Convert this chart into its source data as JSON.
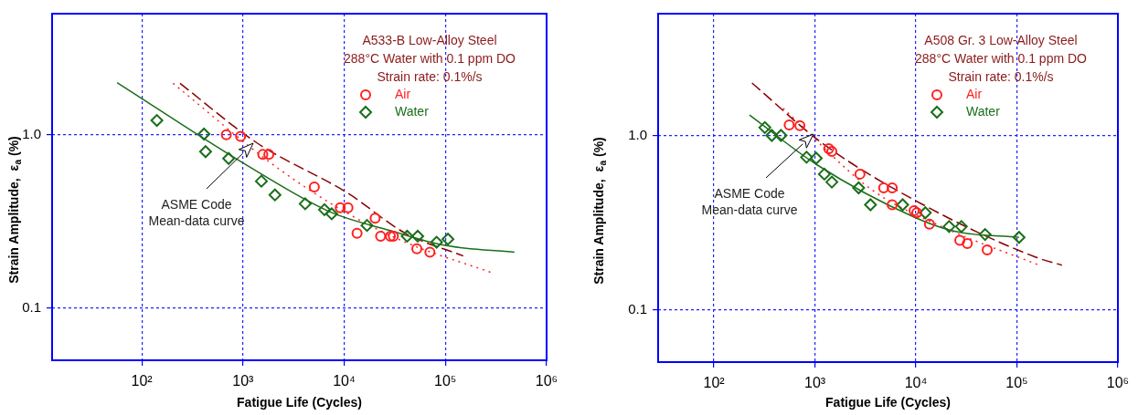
{
  "chart_data": [
    {
      "type": "scatter",
      "title": "A533-B Low-Alloy Steel",
      "subtitle": "288°C Water with 0.1 ppm DO",
      "xlabel": "Fatigue Life (Cycles)",
      "ylabel": "Strain Amplitude,  ε$_{a}$ (%)",
      "log": "xy",
      "grid": true,
      "legend": "top right",
      "xlim": [
        13,
        1000000
      ],
      "ylim": [
        0.05,
        5
      ],
      "xticks": [
        {
          "value": 100,
          "label": "10²"
        },
        {
          "value": 1000,
          "label": "10³"
        },
        {
          "value": 10000,
          "label": "10⁴"
        },
        {
          "value": 100000,
          "label": "10⁵"
        },
        {
          "value": 1000000,
          "label": "10⁶"
        }
      ],
      "yticks": [
        0.1,
        {
          "value": 1,
          "label": "1.0"
        }
      ],
      "annotations": [
        "Strain rate: 0.1%/s",
        "ASME Code\nMean-data curve"
      ],
      "series": [
        {
          "name": "Air",
          "type": "scatter",
          "marker": "circle",
          "color": "#ff2020",
          "x": [
            684,
            947,
            1570,
            1800,
            5070,
            9140,
            10900,
            13400,
            20200,
            22900,
            28600,
            30600,
            52200,
            70300
          ],
          "values": [
            1.0,
            0.98,
            0.77,
            0.77,
            0.5,
            0.38,
            0.38,
            0.27,
            0.33,
            0.26,
            0.26,
            0.26,
            0.22,
            0.21
          ]
        },
        {
          "name": "Water",
          "type": "scatter",
          "marker": "diamond",
          "color": "#1a6e1a",
          "x": [
            141,
            412,
            427,
            722,
            1520,
            2070,
            4120,
            6380,
            7530,
            16800,
            41900,
            53300,
            81900,
            106000
          ],
          "values": [
            1.21,
            1.01,
            0.8,
            0.73,
            0.54,
            0.45,
            0.4,
            0.37,
            0.35,
            0.3,
            0.26,
            0.26,
            0.24,
            0.25
          ]
        },
        {
          "type": "line",
          "marker": "none",
          "line_style": "solid",
          "color": "#1a6e1a",
          "x": [
            57,
            1035,
            7180,
            28600,
            99300,
            481000
          ],
          "values": [
            2.0,
            0.68,
            0.36,
            0.28,
            0.23,
            0.21
          ]
        },
        {
          "type": "line",
          "marker": "none",
          "line_style": "dashed",
          "color": "#8b0000",
          "x": [
            239,
            1365,
            10900,
            40400,
            150000
          ],
          "values": [
            1.98,
            0.9,
            0.46,
            0.27,
            0.2
          ]
        },
        {
          "type": "line",
          "marker": "none",
          "line_style": "dotted",
          "color": "#ff2020",
          "x": [
            204,
            2070,
            10100,
            40200,
            288000
          ],
          "values": [
            1.98,
            0.66,
            0.36,
            0.24,
            0.16
          ]
        }
      ]
    },
    {
      "type": "scatter",
      "title": "A508 Gr. 3 Low-Alloy Steel",
      "subtitle": "288°C Water with 0.1 ppm DO",
      "xlabel": "Fatigue Life (Cycles)",
      "ylabel": "Strain Amplitude,  ε$_{a}$ (%)",
      "log": "xy",
      "grid": true,
      "legend": "top right",
      "xlim": [
        28,
        1000000
      ],
      "ylim": [
        0.05,
        5
      ],
      "xticks": [
        {
          "value": 100,
          "label": "10²"
        },
        {
          "value": 1000,
          "label": "10³"
        },
        {
          "value": 10000,
          "label": "10⁴"
        },
        {
          "value": 100000,
          "label": "10⁵"
        },
        {
          "value": 1000000,
          "label": "10⁶"
        }
      ],
      "yticks": [
        0.1,
        {
          "value": 1,
          "label": "1.0"
        }
      ],
      "annotations": [
        "Strain rate: 0.1%/s",
        "ASME Code\nMean-data curve"
      ],
      "series": [
        {
          "name": "Air",
          "type": "scatter",
          "marker": "circle",
          "color": "#ff2020",
          "x": [
            556,
            709,
            1370,
            1470,
            2790,
            4790,
            5820,
            5820,
            9590,
            10200,
            13600,
            27200,
            32300,
            50800
          ],
          "values": [
            1.15,
            1.14,
            0.84,
            0.81,
            0.6,
            0.5,
            0.5,
            0.4,
            0.37,
            0.36,
            0.31,
            0.25,
            0.24,
            0.22
          ]
        },
        {
          "name": "Water",
          "type": "scatter",
          "marker": "diamond",
          "color": "#1a6e1a",
          "x": [
            319,
            374,
            461,
            826,
            1030,
            1240,
            1470,
            2710,
            3550,
            7390,
            12400,
            21300,
            28200,
            48400,
            105000
          ],
          "values": [
            1.11,
            1.0,
            1.0,
            0.75,
            0.74,
            0.6,
            0.54,
            0.5,
            0.4,
            0.4,
            0.36,
            0.3,
            0.3,
            0.27,
            0.26
          ]
        },
        {
          "type": "line",
          "marker": "none",
          "line_style": "solid",
          "color": "#1a6e1a",
          "x": [
            225,
            1040,
            9590,
            25400,
            105000
          ],
          "values": [
            1.31,
            0.68,
            0.34,
            0.28,
            0.26
          ]
        },
        {
          "type": "line",
          "marker": "none",
          "line_style": "dashed",
          "color": "#8b0000",
          "x": [
            238,
            1190,
            11800,
            154000,
            279000
          ],
          "values": [
            2.0,
            0.9,
            0.4,
            0.2,
            0.18
          ]
        },
        {
          "type": "line",
          "marker": "none",
          "line_style": "dotted",
          "color": "#ff2020",
          "x": [
            484,
            3620,
            17900,
            166000
          ],
          "values": [
            1.43,
            0.49,
            0.3,
            0.18
          ]
        }
      ]
    }
  ]
}
